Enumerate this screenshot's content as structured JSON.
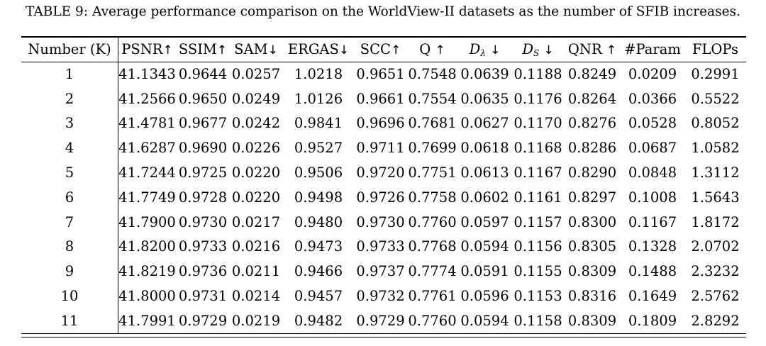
{
  "caption": {
    "label": "TABLE 9:",
    "text": "Average performance comparison on the WorldView-II datasets as the number of SFIB increases."
  },
  "table": {
    "headers": {
      "k": "Number (K)",
      "psnr": "PSNR",
      "psnr_arrow": "↑",
      "ssim": "SSIM",
      "ssim_arrow": "↑",
      "sam": "SAM",
      "sam_arrow": "↓",
      "ergas": "ERGAS",
      "ergas_arrow": "↓",
      "scc": "SCC",
      "scc_arrow": "↑",
      "q": "Q",
      "q_arrow": "↑",
      "dl_base": "D",
      "dl_sub": "λ",
      "dl_arrow": "↓",
      "ds_base": "D",
      "ds_sub": "S",
      "ds_arrow": "↓",
      "qnr": "QNR",
      "qnr_arrow": "↑",
      "param": "#Param",
      "flops": "FLOPs"
    },
    "rows": [
      [
        "1",
        "41.1343",
        "0.9644",
        "0.0257",
        "1.0218",
        "0.9651",
        "0.7548",
        "0.0639",
        "0.1188",
        "0.8249",
        "0.0209",
        "0.2991"
      ],
      [
        "2",
        "41.2566",
        "0.9650",
        "0.0249",
        "1.0126",
        "0.9661",
        "0.7554",
        "0.0635",
        "0.1176",
        "0.8264",
        "0.0366",
        "0.5522"
      ],
      [
        "3",
        "41.4781",
        "0.9677",
        "0.0242",
        "0.9841",
        "0.9696",
        "0.7681",
        "0.0627",
        "0.1170",
        "0.8276",
        "0.0528",
        "0.8052"
      ],
      [
        "4",
        "41.6287",
        "0.9690",
        "0.0226",
        "0.9527",
        "0.9711",
        "0.7699",
        "0.0618",
        "0.1168",
        "0.8286",
        "0.0687",
        "1.0582"
      ],
      [
        "5",
        "41.7244",
        "0.9725",
        "0.0220",
        "0.9506",
        "0.9720",
        "0.7751",
        "0.0613",
        "0.1167",
        "0.8290",
        "0.0848",
        "1.3112"
      ],
      [
        "6",
        "41.7749",
        "0.9728",
        "0.0220",
        "0.9498",
        "0.9726",
        "0.7758",
        "0.0602",
        "0.1161",
        "0.8297",
        "0.1008",
        "1.5643"
      ],
      [
        "7",
        "41.7900",
        "0.9730",
        "0.0217",
        "0.9480",
        "0.9730",
        "0.7760",
        "0.0597",
        "0.1157",
        "0.8300",
        "0.1167",
        "1.8172"
      ],
      [
        "8",
        "41.8200",
        "0.9733",
        "0.0216",
        "0.9473",
        "0.9733",
        "0.7768",
        "0.0594",
        "0.1156",
        "0.8305",
        "0.1328",
        "2.0702"
      ],
      [
        "9",
        "41.8219",
        "0.9736",
        "0.0211",
        "0.9466",
        "0.9737",
        "0.7774",
        "0.0591",
        "0.1155",
        "0.8309",
        "0.1488",
        "2.3232"
      ],
      [
        "10",
        "41.8000",
        "0.9731",
        "0.0214",
        "0.9457",
        "0.9732",
        "0.7761",
        "0.0596",
        "0.1153",
        "0.8316",
        "0.1649",
        "2.5762"
      ],
      [
        "11",
        "41.7991",
        "0.9729",
        "0.0219",
        "0.9482",
        "0.9729",
        "0.7760",
        "0.0594",
        "0.1158",
        "0.8309",
        "0.1809",
        "2.8292"
      ]
    ]
  }
}
